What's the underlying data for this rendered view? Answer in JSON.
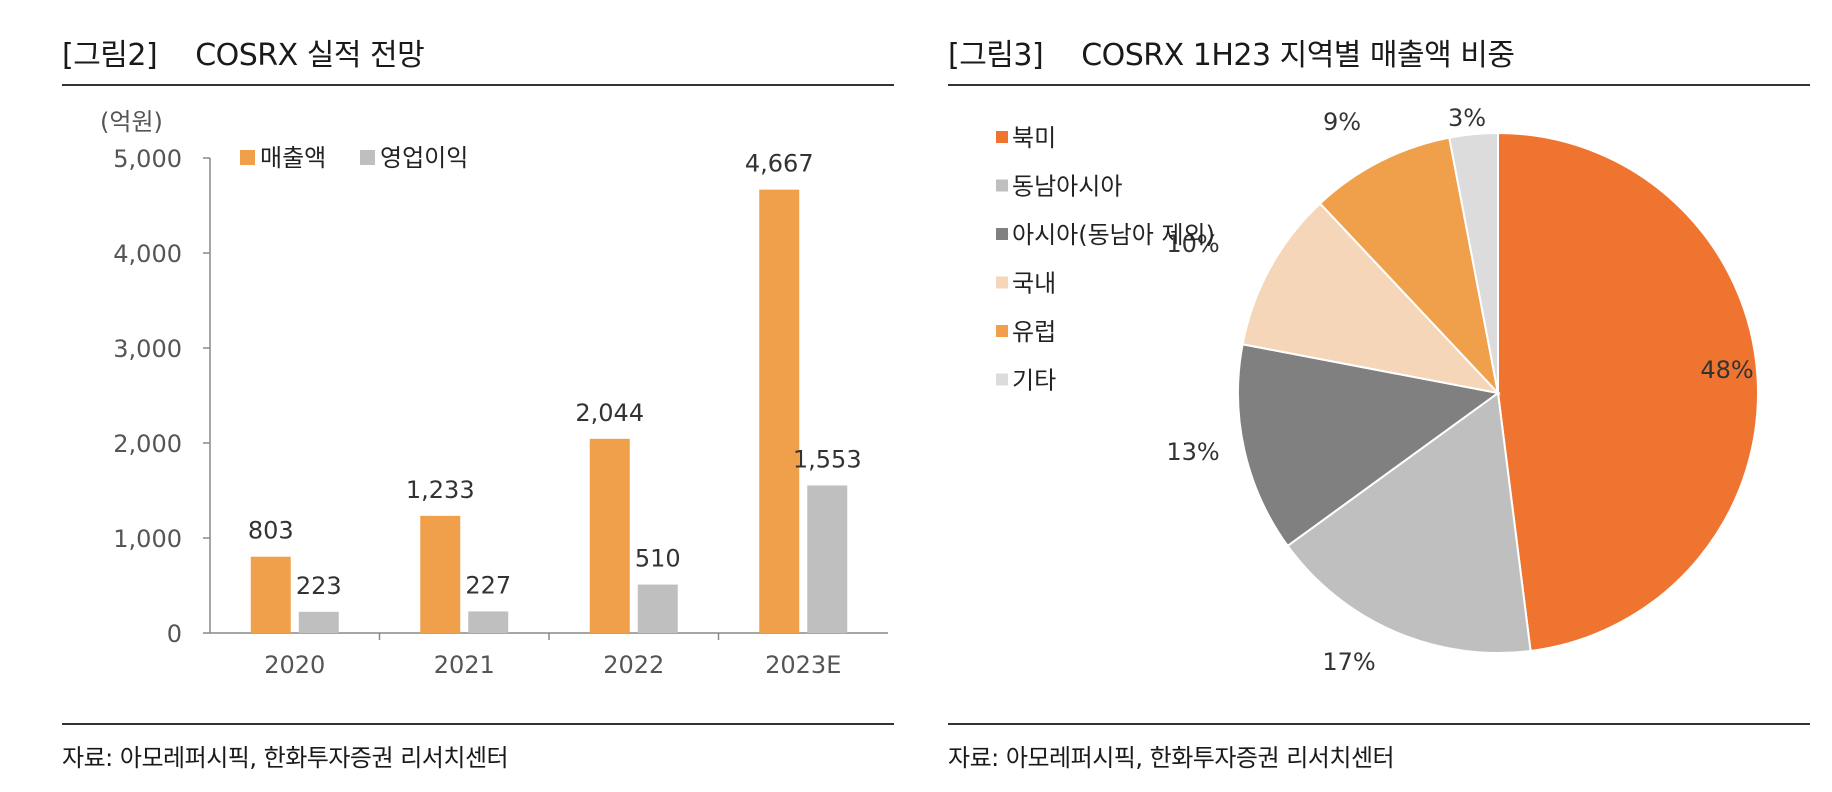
{
  "left": {
    "figure_label": "[그림2]",
    "title": "COSRX 실적 전망",
    "source": "자료: 아모레퍼시픽, 한화투자증권 리서치센터"
  },
  "right": {
    "figure_label": "[그림3]",
    "title": "COSRX 1H23 지역별 매출액 비중",
    "source": "자료: 아모레퍼시픽, 한화투자증권 리서치센터"
  },
  "colors": {
    "sales": "#F0A04B",
    "op_profit": "#BFBFBF",
    "pie": [
      "#EE7430",
      "#BFBFBF",
      "#808080",
      "#F5D6B8",
      "#F0A04B",
      "#DCDCDC"
    ]
  },
  "chart_data": [
    {
      "type": "bar",
      "unit_label": "(억원)",
      "categories": [
        "2020",
        "2021",
        "2022",
        "2023E"
      ],
      "series": [
        {
          "name": "매출액",
          "values": [
            803,
            1233,
            2044,
            4667
          ],
          "value_labels": [
            "803",
            "1,233",
            "2,044",
            "4,667"
          ]
        },
        {
          "name": "영업이익",
          "values": [
            223,
            227,
            510,
            1553
          ],
          "value_labels": [
            "223",
            "227",
            "510",
            "1,553"
          ]
        }
      ],
      "yticks": [
        "0",
        "1,000",
        "2,000",
        "3,000",
        "4,000",
        "5,000"
      ],
      "ylim": [
        0,
        5000
      ],
      "legend_position": "top-left",
      "grid": false
    },
    {
      "type": "pie",
      "labels": [
        "북미",
        "동남아시아",
        "아시아(동남아 제외)",
        "국내",
        "유럽",
        "기타"
      ],
      "values": [
        48,
        17,
        13,
        10,
        9,
        3
      ],
      "value_labels": [
        "48%",
        "17%",
        "13%",
        "10%",
        "9%",
        "3%"
      ],
      "legend_position": "left"
    }
  ]
}
